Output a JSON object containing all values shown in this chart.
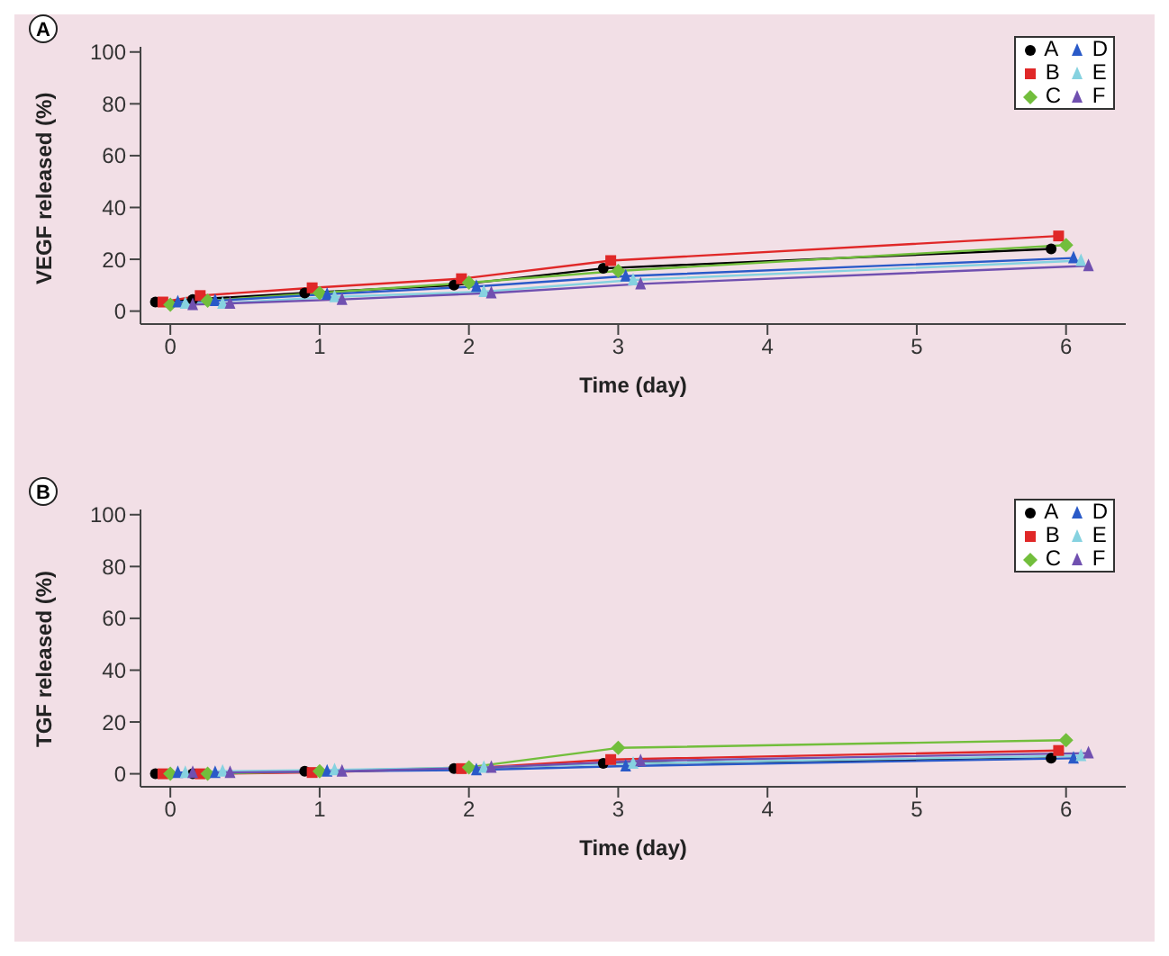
{
  "chart_data": [
    {
      "type": "line",
      "title": "A",
      "xlabel": "Time (day)",
      "ylabel": "VEGF released (%)",
      "xlim": [
        -0.2,
        6.4
      ],
      "xticks": [
        0,
        1,
        2,
        3,
        4,
        5,
        6
      ],
      "ylim": [
        -5,
        102
      ],
      "yticks": [
        0,
        20,
        40,
        60,
        80,
        100
      ],
      "grid": false,
      "legend": "top right",
      "series": [
        {
          "name": "A",
          "color": "#000000",
          "marker": "circle",
          "x": [
            -0.1,
            0.15,
            0.9,
            1.9,
            2.9,
            5.9
          ],
          "values": [
            3.5,
            4.5,
            7,
            10,
            16.5,
            24
          ]
        },
        {
          "name": "B",
          "color": "#e02828",
          "marker": "square",
          "x": [
            -0.05,
            0.2,
            0.95,
            1.95,
            2.95,
            5.95
          ],
          "values": [
            3.5,
            6,
            9,
            12.5,
            19.5,
            29
          ]
        },
        {
          "name": "C",
          "color": "#72be3c",
          "marker": "diamond",
          "x": [
            0,
            0.25,
            1,
            2,
            3,
            6
          ],
          "values": [
            2.5,
            4,
            7,
            11,
            15.5,
            25.5
          ]
        },
        {
          "name": "D",
          "color": "#2a5ac8",
          "marker": "triangle",
          "x": [
            0.05,
            0.3,
            1.05,
            2.05,
            3.05,
            6.05
          ],
          "values": [
            3.5,
            4,
            6.5,
            9.5,
            13.5,
            20.5
          ]
        },
        {
          "name": "E",
          "color": "#86d2e0",
          "marker": "triangle",
          "x": [
            0.1,
            0.35,
            1.1,
            2.1,
            3.1,
            6.1
          ],
          "values": [
            3,
            3,
            5.5,
            7.5,
            12,
            19.5
          ]
        },
        {
          "name": "F",
          "color": "#7050b0",
          "marker": "triangle",
          "x": [
            0.15,
            0.4,
            1.15,
            2.15,
            3.15,
            6.15
          ],
          "values": [
            2.5,
            3,
            4.5,
            7,
            10.5,
            17.5
          ]
        }
      ]
    },
    {
      "type": "line",
      "title": "B",
      "xlabel": "Time (day)",
      "ylabel": "TGF released (%)",
      "xlim": [
        -0.2,
        6.4
      ],
      "xticks": [
        0,
        1,
        2,
        3,
        4,
        5,
        6
      ],
      "ylim": [
        -5,
        102
      ],
      "yticks": [
        0,
        20,
        40,
        60,
        80,
        100
      ],
      "grid": false,
      "legend": "top right",
      "series": [
        {
          "name": "A",
          "color": "#000000",
          "marker": "circle",
          "x": [
            -0.1,
            0.15,
            0.9,
            1.9,
            2.9,
            5.9
          ],
          "values": [
            0,
            0,
            1,
            2,
            4,
            6
          ]
        },
        {
          "name": "B",
          "color": "#e02828",
          "marker": "square",
          "x": [
            -0.05,
            0.2,
            0.95,
            1.95,
            2.95,
            5.95
          ],
          "values": [
            0,
            0,
            0.5,
            2,
            5.5,
            9
          ]
        },
        {
          "name": "C",
          "color": "#72be3c",
          "marker": "diamond",
          "x": [
            0,
            0.25,
            1,
            2,
            3,
            6
          ],
          "values": [
            0,
            0,
            1,
            2.5,
            10,
            13
          ]
        },
        {
          "name": "D",
          "color": "#2a5ac8",
          "marker": "triangle",
          "x": [
            0.05,
            0.3,
            1.05,
            2.05,
            3.05,
            6.05
          ],
          "values": [
            0.5,
            0.5,
            1,
            1.5,
            3,
            6
          ]
        },
        {
          "name": "E",
          "color": "#86d2e0",
          "marker": "triangle",
          "x": [
            0.1,
            0.35,
            1.1,
            2.1,
            3.1,
            6.1
          ],
          "values": [
            0.5,
            1,
            1.5,
            2.5,
            4,
            7
          ]
        },
        {
          "name": "F",
          "color": "#7050b0",
          "marker": "triangle",
          "x": [
            0.15,
            0.4,
            1.15,
            2.15,
            3.15,
            6.15
          ],
          "values": [
            0.5,
            0.5,
            1,
            2.5,
            5,
            8
          ]
        }
      ]
    }
  ]
}
